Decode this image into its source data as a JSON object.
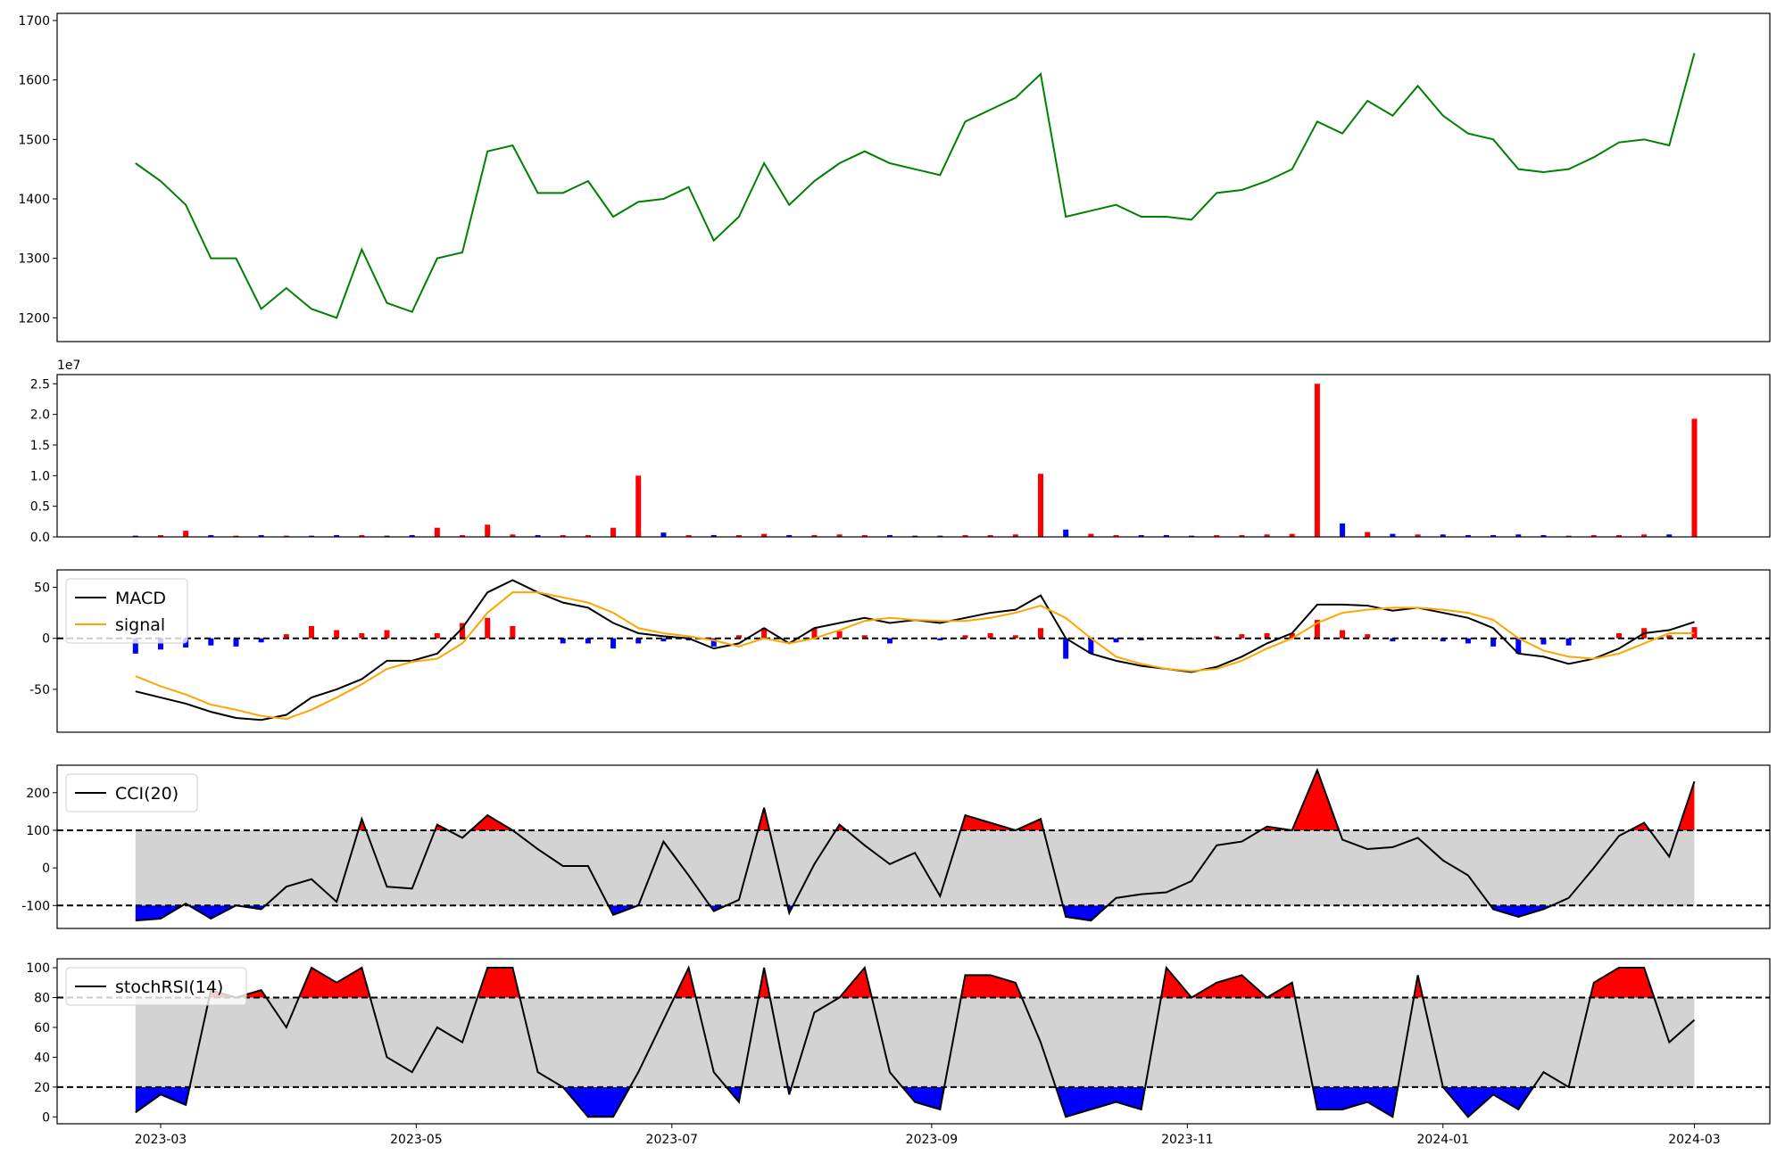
{
  "chart_data": [
    {
      "type": "line",
      "color": "#008000",
      "x": [
        53,
        59,
        65,
        71,
        77,
        83,
        89,
        95,
        101,
        107,
        113,
        119,
        125,
        131,
        137,
        143,
        149,
        155,
        161,
        167,
        173,
        179,
        185,
        191,
        197,
        203,
        209,
        215,
        221,
        227,
        233,
        239,
        245,
        251,
        257,
        263,
        269,
        275,
        281,
        287,
        293,
        299,
        305,
        311,
        317,
        323,
        329,
        335,
        341,
        347,
        353,
        359,
        365,
        371,
        377,
        383,
        389,
        395,
        401,
        407,
        413,
        419,
        425
      ],
      "values": [
        1460,
        1430,
        1390,
        1300,
        1300,
        1215,
        1250,
        1215,
        1200,
        1315,
        1225,
        1210,
        1300,
        1310,
        1480,
        1490,
        1410,
        1410,
        1430,
        1370,
        1395,
        1400,
        1420,
        1330,
        1370,
        1460,
        1390,
        1430,
        1460,
        1480,
        1460,
        1450,
        1440,
        1530,
        1550,
        1570,
        1610,
        1370,
        1380,
        1390,
        1370,
        1370,
        1365,
        1410,
        1415,
        1430,
        1450,
        1530,
        1510,
        1565,
        1540,
        1590,
        1540,
        1510,
        1500,
        1450,
        1445,
        1450,
        1470,
        1495,
        1500,
        1490,
        1645
      ],
      "xlim": [
        34.3,
        443
      ],
      "ylim": [
        1160,
        1712
      ],
      "yticks": [
        1200,
        1300,
        1400,
        1500,
        1600,
        1700
      ]
    },
    {
      "type": "bar",
      "offset_label": "1e7",
      "x": [
        53,
        59,
        65,
        71,
        77,
        83,
        89,
        95,
        101,
        107,
        113,
        119,
        125,
        131,
        137,
        143,
        149,
        155,
        161,
        167,
        173,
        179,
        185,
        191,
        197,
        203,
        209,
        215,
        221,
        227,
        233,
        239,
        245,
        251,
        257,
        263,
        269,
        275,
        281,
        287,
        293,
        299,
        305,
        311,
        317,
        323,
        329,
        335,
        341,
        347,
        353,
        359,
        365,
        371,
        377,
        383,
        389,
        395,
        401,
        407,
        413,
        419,
        425
      ],
      "values": [
        0.02,
        0.03,
        0.1,
        0.03,
        0.02,
        0.03,
        0.02,
        0.02,
        0.03,
        0.03,
        0.02,
        0.03,
        0.15,
        0.03,
        0.2,
        0.04,
        0.03,
        0.03,
        0.03,
        0.15,
        1.0,
        0.07,
        0.03,
        0.03,
        0.03,
        0.05,
        0.03,
        0.03,
        0.04,
        0.03,
        0.03,
        0.02,
        0.02,
        0.03,
        0.03,
        0.04,
        1.03,
        0.12,
        0.05,
        0.03,
        0.03,
        0.03,
        0.02,
        0.03,
        0.03,
        0.04,
        0.05,
        2.5,
        0.22,
        0.08,
        0.05,
        0.04,
        0.04,
        0.03,
        0.03,
        0.04,
        0.03,
        0.02,
        0.03,
        0.03,
        0.04,
        0.04,
        1.93
      ],
      "colors": [
        "#0000ff",
        "#ff0000",
        "#ff0000",
        "#0000ff",
        "#ff0000",
        "#0000ff",
        "#ff0000",
        "#0000ff",
        "#0000ff",
        "#ff0000",
        "#0000ff",
        "#0000ff",
        "#ff0000",
        "#ff0000",
        "#ff0000",
        "#ff0000",
        "#0000ff",
        "#ff0000",
        "#ff0000",
        "#ff0000",
        "#ff0000",
        "#0000ff",
        "#ff0000",
        "#0000ff",
        "#ff0000",
        "#ff0000",
        "#0000ff",
        "#ff0000",
        "#ff0000",
        "#ff0000",
        "#0000ff",
        "#0000ff",
        "#0000ff",
        "#ff0000",
        "#ff0000",
        "#ff0000",
        "#ff0000",
        "#0000ff",
        "#ff0000",
        "#ff0000",
        "#0000ff",
        "#0000ff",
        "#0000ff",
        "#ff0000",
        "#ff0000",
        "#ff0000",
        "#ff0000",
        "#ff0000",
        "#0000ff",
        "#ff0000",
        "#0000ff",
        "#ff0000",
        "#0000ff",
        "#0000ff",
        "#0000ff",
        "#0000ff",
        "#0000ff",
        "#ff0000",
        "#ff0000",
        "#ff0000",
        "#ff0000",
        "#0000ff",
        "#ff0000"
      ],
      "xlim": [
        34.3,
        443
      ],
      "ylim": [
        0,
        2.65
      ],
      "yticks": [
        {
          "value": 0,
          "label": "0.0"
        },
        0.5,
        {
          "value": 1,
          "label": "1.0"
        },
        1.5,
        {
          "value": 2,
          "label": "2.0"
        },
        2.5
      ]
    },
    {
      "type": "line",
      "legend": "upper left",
      "x": [
        53,
        59,
        65,
        71,
        77,
        83,
        89,
        95,
        101,
        107,
        113,
        119,
        125,
        131,
        137,
        143,
        149,
        155,
        161,
        167,
        173,
        179,
        185,
        191,
        197,
        203,
        209,
        215,
        221,
        227,
        233,
        239,
        245,
        251,
        257,
        263,
        269,
        275,
        281,
        287,
        293,
        299,
        305,
        311,
        317,
        323,
        329,
        335,
        341,
        347,
        353,
        359,
        365,
        371,
        377,
        383,
        389,
        395,
        401,
        407,
        413,
        419,
        425
      ],
      "series": [
        {
          "name": "MACD",
          "color": "#000000",
          "values": [
            -52,
            -58,
            -64,
            -72,
            -78,
            -80,
            -75,
            -58,
            -50,
            -40,
            -22,
            -22,
            -15,
            10,
            45,
            57,
            45,
            35,
            30,
            15,
            5,
            2,
            0,
            -10,
            -5,
            10,
            -5,
            10,
            15,
            20,
            15,
            18,
            15,
            20,
            25,
            28,
            42,
            0,
            -15,
            -22,
            -27,
            -30,
            -33,
            -28,
            -18,
            -5,
            5,
            33,
            33,
            32,
            27,
            30,
            25,
            20,
            10,
            -15,
            -18,
            -25,
            -20,
            -10,
            5,
            8,
            16
          ]
        },
        {
          "name": "signal",
          "color": "#ffa500",
          "values": [
            -37,
            -47,
            -55,
            -65,
            -70,
            -76,
            -79,
            -70,
            -58,
            -45,
            -30,
            -23,
            -20,
            -5,
            25,
            45,
            45,
            40,
            35,
            25,
            10,
            5,
            2,
            -2,
            -8,
            0,
            -5,
            0,
            8,
            17,
            20,
            18,
            17,
            17,
            20,
            25,
            32,
            20,
            0,
            -18,
            -25,
            -30,
            -32,
            -30,
            -22,
            -10,
            0,
            15,
            25,
            28,
            30,
            30,
            28,
            25,
            18,
            0,
            -12,
            -18,
            -20,
            -15,
            -5,
            5,
            5
          ]
        }
      ],
      "histogram": {
        "positive_color": "#ff0000",
        "negative_color": "#0000ff",
        "values": [
          -15,
          -11,
          -9,
          -7,
          -8,
          -4,
          4,
          12,
          8,
          5,
          8,
          1,
          5,
          15,
          20,
          12,
          0,
          -5,
          -5,
          -10,
          -5,
          -3,
          -2,
          -8,
          3,
          10,
          0,
          10,
          7,
          3,
          -5,
          0,
          -2,
          3,
          5,
          3,
          10,
          -20,
          -15,
          -4,
          -2,
          0,
          -1,
          2,
          4,
          5,
          5,
          18,
          8,
          4,
          -3,
          0,
          -3,
          -5,
          -8,
          -15,
          -6,
          -7,
          0,
          5,
          10,
          3,
          11
        ]
      },
      "hlines": [
        0
      ],
      "xlim": [
        34.3,
        443
      ],
      "ylim": [
        -92,
        67
      ],
      "yticks": [
        -50,
        0,
        50
      ]
    },
    {
      "type": "line",
      "legend": "upper left",
      "x": [
        53,
        59,
        65,
        71,
        77,
        83,
        89,
        95,
        101,
        107,
        113,
        119,
        125,
        131,
        137,
        143,
        149,
        155,
        161,
        167,
        173,
        179,
        185,
        191,
        197,
        203,
        209,
        215,
        221,
        227,
        233,
        239,
        245,
        251,
        257,
        263,
        269,
        275,
        281,
        287,
        293,
        299,
        305,
        311,
        317,
        323,
        329,
        335,
        341,
        347,
        353,
        359,
        365,
        371,
        377,
        383,
        389,
        395,
        401,
        407,
        413,
        419,
        425
      ],
      "series": [
        {
          "name": "CCI(20)",
          "color": "#000000",
          "values": [
            -140,
            -135,
            -95,
            -135,
            -100,
            -110,
            -50,
            -30,
            -90,
            130,
            -50,
            -55,
            115,
            80,
            140,
            100,
            50,
            5,
            5,
            -125,
            -100,
            70,
            -20,
            -115,
            -85,
            160,
            -120,
            10,
            115,
            60,
            10,
            40,
            -75,
            140,
            120,
            100,
            130,
            -130,
            -140,
            -80,
            -70,
            -65,
            -35,
            60,
            70,
            110,
            100,
            260,
            75,
            50,
            55,
            80,
            20,
            -20,
            -110,
            -130,
            -110,
            -80,
            0,
            85,
            120,
            30,
            230
          ]
        }
      ],
      "hlines": [
        -100,
        100
      ],
      "fill": {
        "band": "#d3d3d3",
        "above": "#ff0000",
        "below": "#0000ff"
      },
      "xlim": [
        34.3,
        443
      ],
      "ylim": [
        -161,
        273
      ],
      "yticks": [
        -100,
        0,
        100,
        200
      ]
    },
    {
      "type": "line",
      "legend": "upper left",
      "x": [
        53,
        59,
        65,
        71,
        77,
        83,
        89,
        95,
        101,
        107,
        113,
        119,
        125,
        131,
        137,
        143,
        149,
        155,
        161,
        167,
        173,
        179,
        185,
        191,
        197,
        203,
        209,
        215,
        221,
        227,
        233,
        239,
        245,
        251,
        257,
        263,
        269,
        275,
        281,
        287,
        293,
        299,
        305,
        311,
        317,
        323,
        329,
        335,
        341,
        347,
        353,
        359,
        365,
        371,
        377,
        383,
        389,
        395,
        401,
        407,
        413,
        419,
        425
      ],
      "series": [
        {
          "name": "stochRSI(14)",
          "color": "#000000",
          "values": [
            3,
            15,
            8,
            85,
            80,
            85,
            60,
            100,
            90,
            100,
            40,
            30,
            60,
            50,
            100,
            100,
            30,
            20,
            0,
            0,
            30,
            65,
            100,
            30,
            10,
            100,
            15,
            70,
            80,
            100,
            30,
            10,
            5,
            95,
            95,
            90,
            50,
            0,
            5,
            10,
            5,
            100,
            80,
            90,
            95,
            80,
            90,
            5,
            5,
            10,
            0,
            95,
            20,
            0,
            15,
            5,
            30,
            20,
            90,
            100,
            100,
            50,
            65
          ]
        }
      ],
      "hlines": [
        20,
        80
      ],
      "fill": {
        "band": "#d3d3d3",
        "above": "#ff0000",
        "below": "#0000ff"
      },
      "xlim": [
        34.3,
        443
      ],
      "ylim": [
        -4.6,
        106
      ],
      "yticks": [
        0,
        20,
        40,
        60,
        80,
        100
      ],
      "xticks": [
        {
          "value": 59,
          "label": "2023-03"
        },
        {
          "value": 120,
          "label": "2023-05"
        },
        {
          "value": 181,
          "label": "2023-07"
        },
        {
          "value": 243,
          "label": "2023-09"
        },
        {
          "value": 304,
          "label": "2023-11"
        },
        {
          "value": 365,
          "label": "2024-01"
        },
        {
          "value": 425,
          "label": "2024-03"
        }
      ]
    }
  ]
}
